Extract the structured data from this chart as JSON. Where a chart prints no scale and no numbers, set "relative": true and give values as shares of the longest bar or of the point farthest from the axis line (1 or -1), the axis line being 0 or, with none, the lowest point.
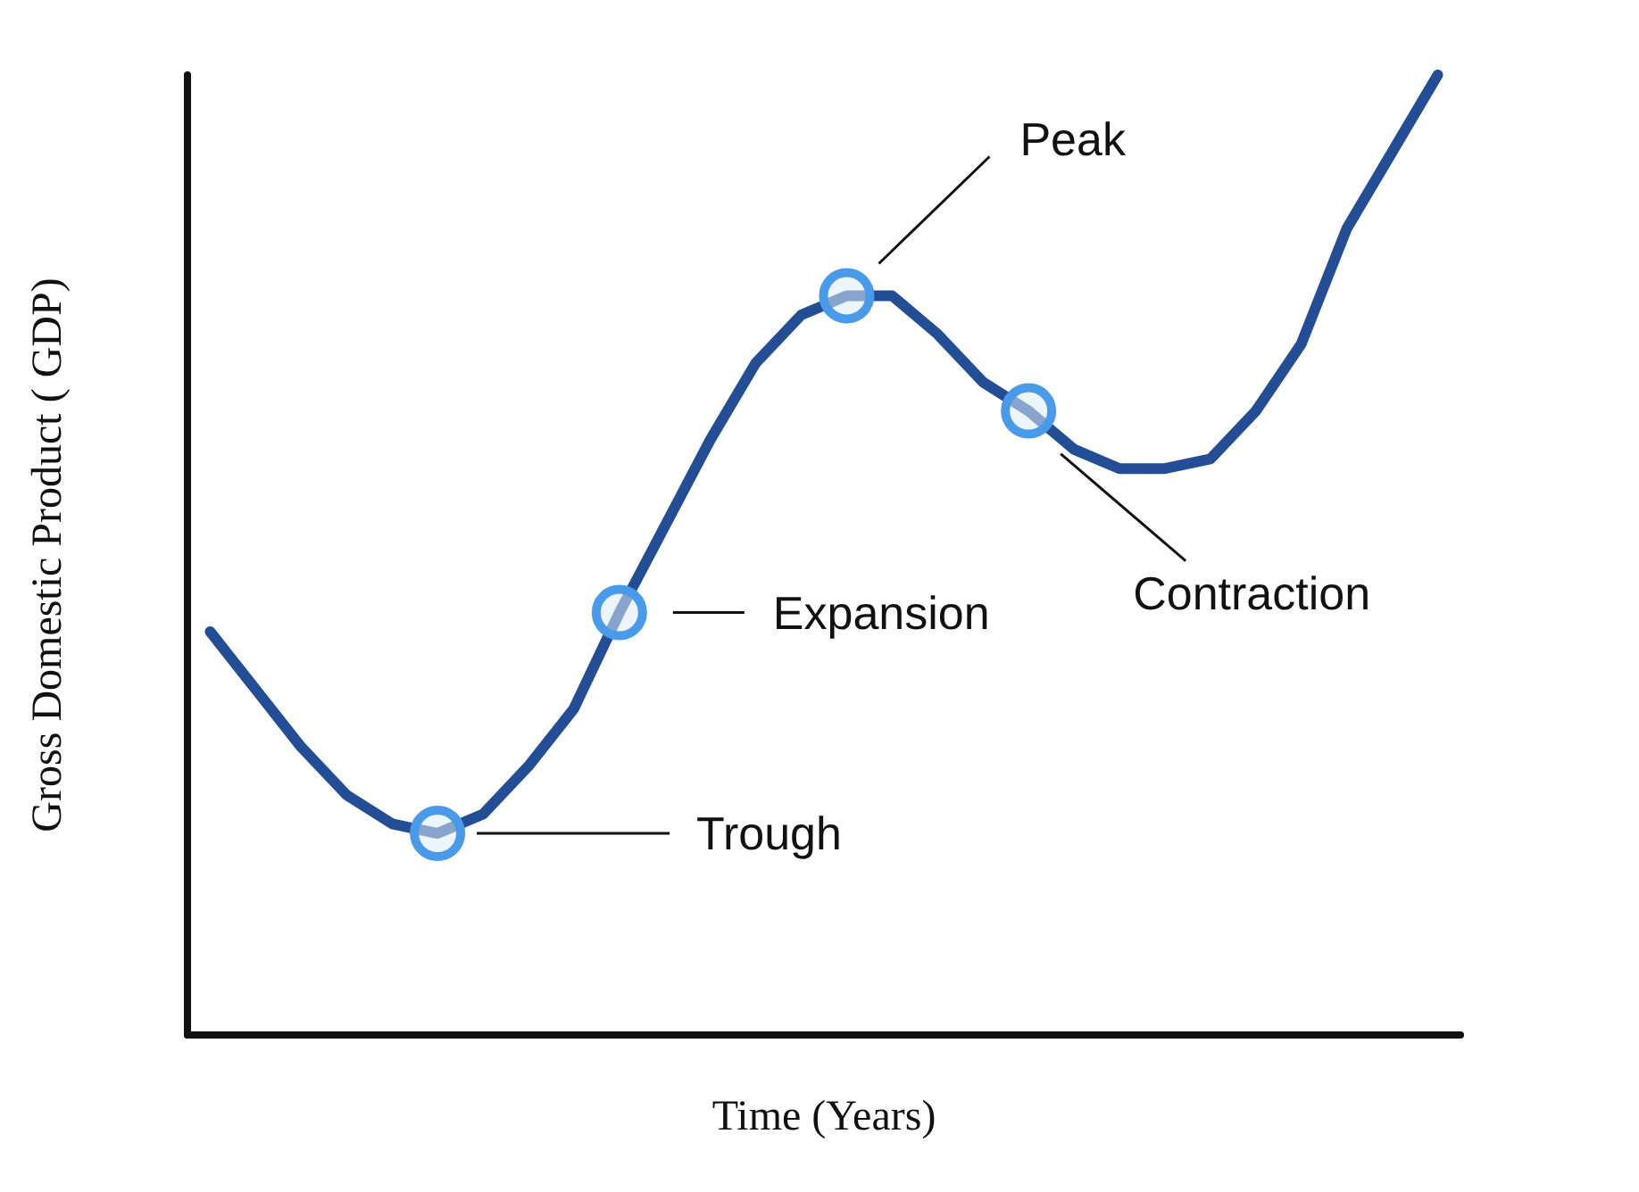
{
  "chart_data": {
    "type": "line",
    "relative": true,
    "xlabel": "Time (Years)",
    "ylabel": "Gross Domestic Product ( GDP)",
    "categories": [
      null,
      null,
      null,
      null,
      null,
      null,
      null,
      null,
      null,
      null,
      null,
      null,
      null,
      null,
      null,
      null,
      null,
      null,
      null,
      null,
      null,
      null,
      null,
      null,
      null,
      null,
      null,
      null
    ],
    "series": [
      {
        "color": "#234e96",
        "values": [
          0.42,
          0.36,
          0.3,
          0.25,
          0.22,
          0.21,
          0.23,
          0.28,
          0.34,
          0.44,
          0.53,
          0.62,
          0.7,
          0.75,
          0.77,
          0.77,
          0.73,
          0.68,
          0.65,
          0.61,
          0.59,
          0.59,
          0.6,
          0.65,
          0.72,
          0.84,
          0.92,
          1
        ]
      }
    ],
    "annotations": [
      "Trough",
      "Expansion",
      "Peak",
      "Contraction"
    ],
    "marker": "none",
    "grid": false
  }
}
